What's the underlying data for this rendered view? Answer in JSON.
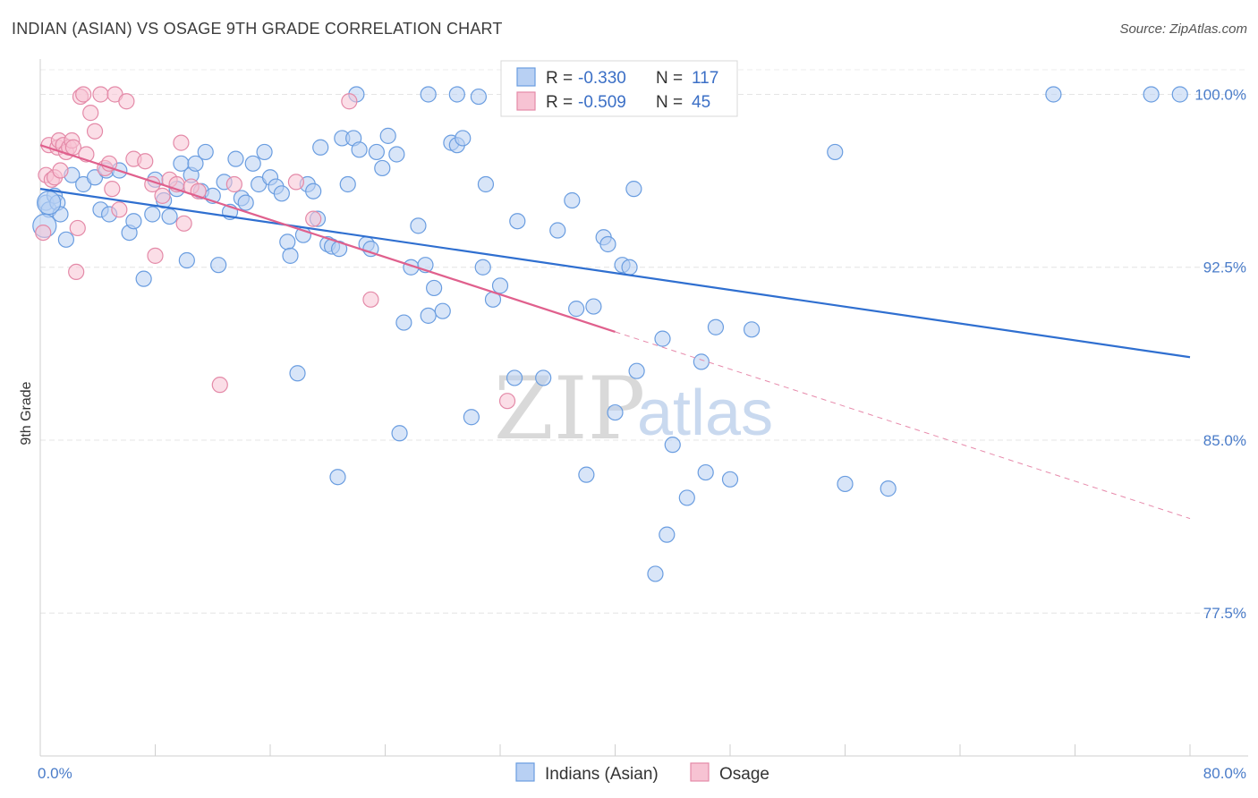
{
  "title": "INDIAN (ASIAN) VS OSAGE 9TH GRADE CORRELATION CHART",
  "source": "Source: ZipAtlas.com",
  "chart_data": {
    "type": "scatter",
    "ylabel": "9th Grade",
    "xlim": [
      0,
      80
    ],
    "ylim": [
      71.3,
      101.3
    ],
    "x_edge_labels": [
      "0.0%",
      "80.0%"
    ],
    "y_ticks": [
      {
        "value": 100.0,
        "label": "100.0%"
      },
      {
        "value": 92.5,
        "label": "92.5%"
      },
      {
        "value": 85.0,
        "label": "85.0%"
      },
      {
        "value": 77.5,
        "label": "77.5%"
      }
    ],
    "grid": true,
    "legend": {
      "placement": "top",
      "entries": [
        {
          "r_label": "R =",
          "r_value": "-0.330",
          "n_label": "N =",
          "n_value": "117"
        },
        {
          "r_label": "R =",
          "r_value": "-0.509",
          "n_label": "N =",
          "n_value": "45"
        }
      ]
    },
    "series": [
      {
        "name": "Indians (Asian)",
        "color": "#6a9de0",
        "fill": "#b8d0f3",
        "trend": {
          "x": [
            0,
            80
          ],
          "y": [
            95.9,
            88.6
          ]
        },
        "points": [
          [
            0.4,
            95.3
          ],
          [
            0.6,
            95.0
          ],
          [
            1.0,
            95.6
          ],
          [
            1.2,
            95.3
          ],
          [
            1.4,
            94.8
          ],
          [
            1.8,
            93.7
          ],
          [
            2.2,
            96.5
          ],
          [
            3.0,
            96.1
          ],
          [
            3.8,
            96.4
          ],
          [
            4.2,
            95.0
          ],
          [
            4.6,
            96.7
          ],
          [
            4.8,
            94.8
          ],
          [
            5.5,
            96.7
          ],
          [
            6.2,
            94.0
          ],
          [
            6.5,
            94.5
          ],
          [
            7.2,
            92.0
          ],
          [
            7.8,
            94.8
          ],
          [
            8.0,
            96.3
          ],
          [
            8.6,
            95.4
          ],
          [
            9.0,
            94.7
          ],
          [
            9.5,
            95.9
          ],
          [
            9.8,
            97.0
          ],
          [
            10.2,
            92.8
          ],
          [
            10.5,
            96.5
          ],
          [
            10.8,
            97.0
          ],
          [
            11.2,
            95.8
          ],
          [
            11.5,
            97.5
          ],
          [
            12.0,
            95.6
          ],
          [
            12.4,
            92.6
          ],
          [
            12.8,
            96.2
          ],
          [
            13.2,
            94.9
          ],
          [
            13.6,
            97.2
          ],
          [
            14.0,
            95.5
          ],
          [
            14.3,
            95.3
          ],
          [
            14.8,
            97.0
          ],
          [
            15.2,
            96.1
          ],
          [
            15.6,
            97.5
          ],
          [
            16.0,
            96.4
          ],
          [
            16.4,
            96.0
          ],
          [
            16.8,
            95.7
          ],
          [
            17.2,
            93.6
          ],
          [
            17.4,
            93.0
          ],
          [
            17.9,
            87.9
          ],
          [
            18.3,
            93.9
          ],
          [
            18.6,
            96.1
          ],
          [
            19.0,
            95.8
          ],
          [
            19.3,
            94.6
          ],
          [
            19.5,
            97.7
          ],
          [
            20.0,
            93.5
          ],
          [
            20.3,
            93.4
          ],
          [
            20.8,
            93.3
          ],
          [
            21.0,
            98.1
          ],
          [
            21.4,
            96.1
          ],
          [
            21.8,
            98.1
          ],
          [
            22.2,
            97.6
          ],
          [
            22.7,
            93.5
          ],
          [
            23.0,
            93.3
          ],
          [
            23.4,
            97.5
          ],
          [
            23.8,
            96.8
          ],
          [
            24.2,
            98.2
          ],
          [
            24.8,
            97.4
          ],
          [
            25.0,
            85.3
          ],
          [
            25.3,
            90.1
          ],
          [
            25.8,
            92.5
          ],
          [
            26.3,
            94.3
          ],
          [
            26.8,
            92.6
          ],
          [
            27.0,
            90.4
          ],
          [
            27.4,
            91.6
          ],
          [
            28.0,
            90.6
          ],
          [
            28.6,
            97.9
          ],
          [
            29.0,
            97.8
          ],
          [
            29.4,
            98.1
          ],
          [
            30.0,
            86.0
          ],
          [
            30.5,
            99.9
          ],
          [
            30.8,
            92.5
          ],
          [
            31.0,
            96.1
          ],
          [
            31.5,
            91.1
          ],
          [
            32.0,
            91.7
          ],
          [
            33.2,
            94.5
          ],
          [
            33.0,
            87.7
          ],
          [
            35.0,
            87.7
          ],
          [
            36.0,
            94.1
          ],
          [
            37.0,
            95.4
          ],
          [
            37.3,
            90.7
          ],
          [
            38.0,
            83.5
          ],
          [
            38.5,
            90.8
          ],
          [
            39.2,
            93.8
          ],
          [
            39.5,
            93.5
          ],
          [
            40.0,
            86.2
          ],
          [
            40.5,
            92.6
          ],
          [
            41.0,
            92.5
          ],
          [
            41.3,
            95.9
          ],
          [
            41.5,
            88.0
          ],
          [
            43.3,
            89.4
          ],
          [
            44.0,
            84.8
          ],
          [
            43.6,
            80.9
          ],
          [
            42.8,
            79.2
          ],
          [
            45.0,
            82.5
          ],
          [
            46.3,
            83.6
          ],
          [
            46.0,
            88.4
          ],
          [
            47.0,
            89.9
          ],
          [
            47.5,
            100.0
          ],
          [
            48.0,
            83.3
          ],
          [
            49.5,
            89.8
          ],
          [
            22.0,
            100.0
          ],
          [
            27.0,
            100.0
          ],
          [
            35.0,
            100.0
          ],
          [
            40.0,
            100.0
          ],
          [
            55.3,
            97.5
          ],
          [
            56.0,
            83.1
          ],
          [
            59.0,
            82.9
          ],
          [
            70.5,
            100.0
          ],
          [
            77.3,
            100.0
          ],
          [
            79.3,
            100.0
          ],
          [
            20.7,
            83.4
          ],
          [
            29.0,
            100.0
          ],
          [
            34.0,
            100.0
          ]
        ],
        "big_points": [
          [
            0.6,
            95.3
          ],
          [
            0.3,
            94.3
          ]
        ]
      },
      {
        "name": "Osage",
        "color": "#e48aa8",
        "fill": "#f7c3d3",
        "trend_solid": {
          "x": [
            0,
            40
          ],
          "y": [
            97.8,
            89.7
          ]
        },
        "trend_dashed": {
          "x": [
            40,
            80
          ],
          "y": [
            89.7,
            81.6
          ]
        },
        "points": [
          [
            0.2,
            94.0
          ],
          [
            0.4,
            96.5
          ],
          [
            0.6,
            97.8
          ],
          [
            0.8,
            96.3
          ],
          [
            1.0,
            96.4
          ],
          [
            1.2,
            97.7
          ],
          [
            1.3,
            98.0
          ],
          [
            1.4,
            96.7
          ],
          [
            1.6,
            97.8
          ],
          [
            1.8,
            97.5
          ],
          [
            2.0,
            97.7
          ],
          [
            2.2,
            98.0
          ],
          [
            2.3,
            97.7
          ],
          [
            2.5,
            92.3
          ],
          [
            2.6,
            94.2
          ],
          [
            2.8,
            99.9
          ],
          [
            3.0,
            100.0
          ],
          [
            3.2,
            97.4
          ],
          [
            3.5,
            99.2
          ],
          [
            3.8,
            98.4
          ],
          [
            4.2,
            100.0
          ],
          [
            4.5,
            96.8
          ],
          [
            4.8,
            97.0
          ],
          [
            5.0,
            95.9
          ],
          [
            5.2,
            100.0
          ],
          [
            5.5,
            95.0
          ],
          [
            6.0,
            99.7
          ],
          [
            6.5,
            97.2
          ],
          [
            7.3,
            97.1
          ],
          [
            7.8,
            96.1
          ],
          [
            8.5,
            95.6
          ],
          [
            9.0,
            96.3
          ],
          [
            9.5,
            96.1
          ],
          [
            9.8,
            97.9
          ],
          [
            10.0,
            94.4
          ],
          [
            10.5,
            96.0
          ],
          [
            11.0,
            95.8
          ],
          [
            12.5,
            87.4
          ],
          [
            13.5,
            96.1
          ],
          [
            17.8,
            96.2
          ],
          [
            19.0,
            94.6
          ],
          [
            21.5,
            99.7
          ],
          [
            23.0,
            91.1
          ],
          [
            32.5,
            86.7
          ],
          [
            8.0,
            93.0
          ]
        ]
      }
    ]
  },
  "watermark": {
    "zip": "ZIP",
    "atlas": "atlas"
  }
}
